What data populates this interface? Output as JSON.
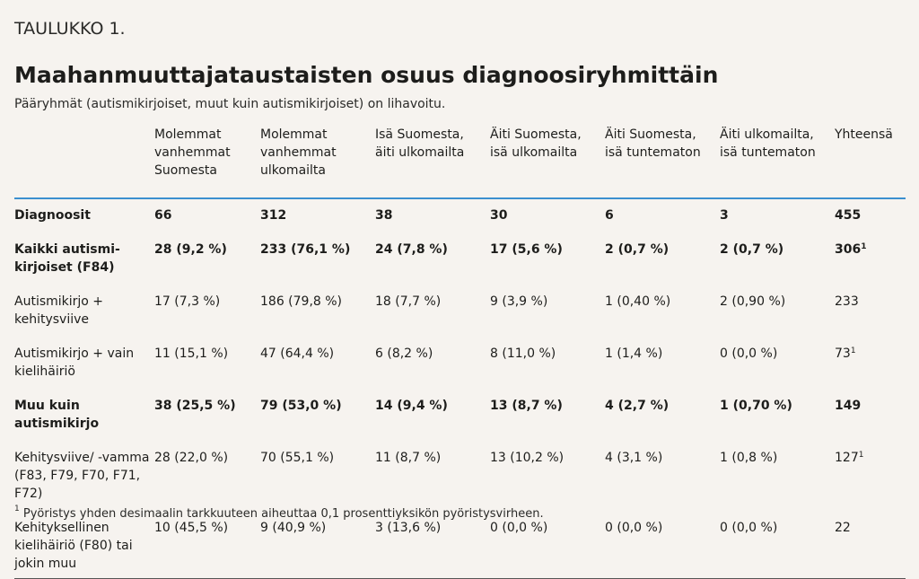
{
  "label": "TAULUKKO 1.",
  "title": "Maahanmuuttajataustaisten osuus diagnoosiryhmittäin",
  "subtitle": "Pääryhmät (autismikirjoiset, muut kuin autismikirjoiset) on lihavoitu.",
  "columns": [
    "",
    "Molemmat vanhemmat Suomesta",
    "Molemmat vanhemmat ulkomailta",
    "Isä Suomesta, äiti ulkomailta",
    "Äiti Suomesta, isä ulkomailta",
    "Äiti Suomesta, isä tuntematon",
    "Äiti ulkomailta, isä tuntematon",
    "Yhteensä"
  ],
  "rows": [
    {
      "label": "Diagnoosit",
      "bold": true,
      "cells": [
        "66",
        "312",
        "38",
        "30",
        "6",
        "3",
        "455"
      ],
      "total_note": ""
    },
    {
      "label": "Kaikki autismi-kirjoiset (F84)",
      "bold": true,
      "cells": [
        "28 (9,2 %)",
        "233 (76,1 %)",
        "24 (7,8 %)",
        "17 (5,6 %)",
        "2 (0,7 %)",
        "2 (0,7 %)",
        "306"
      ],
      "total_note": "1"
    },
    {
      "label": "Autismikirjo + kehitysviive",
      "bold": false,
      "cells": [
        "17 (7,3 %)",
        "186 (79,8 %)",
        "18 (7,7 %)",
        "9 (3,9 %)",
        "1 (0,40 %)",
        "2 (0,90 %)",
        "233"
      ],
      "total_note": ""
    },
    {
      "label": "Autismikirjo + vain kielihäiriö",
      "bold": false,
      "cells": [
        "11 (15,1 %)",
        "47 (64,4 %)",
        "6 (8,2 %)",
        "8 (11,0 %)",
        "1 (1,4 %)",
        "0 (0,0 %)",
        "73"
      ],
      "total_note": "1"
    },
    {
      "label": "Muu kuin autismikirjo",
      "bold": true,
      "cells": [
        "38 (25,5 %)",
        "79 (53,0 %)",
        "14 (9,4 %)",
        "13 (8,7 %)",
        "4 (2,7 %)",
        "1 (0,70 %)",
        "149"
      ],
      "total_note": ""
    },
    {
      "label": "Kehitysviive/ -vamma (F83, F79, F70, F71, F72)",
      "bold": false,
      "cells": [
        "28 (22,0 %)",
        "70 (55,1 %)",
        "11 (8,7 %)",
        "13 (10,2 %)",
        "4 (3,1 %)",
        "1 (0,8 %)",
        "127"
      ],
      "total_note": "1"
    },
    {
      "label": "Kehityksellinen kielihäiriö (F80) tai jokin muu",
      "bold": false,
      "cells": [
        "10 (45,5 %)",
        "9 (40,9 %)",
        "3 (13,6 %)",
        " 0 (0,0 %)",
        "0 (0,0 %)",
        "0 (0,0 %)",
        "22"
      ],
      "total_note": ""
    }
  ],
  "footnote": {
    "mark": "1",
    "text": " Pyöristys yhden desimaalin tarkkuuteen aiheuttaa 0,1 prosenttiyksikön pyöristysvirheen."
  }
}
